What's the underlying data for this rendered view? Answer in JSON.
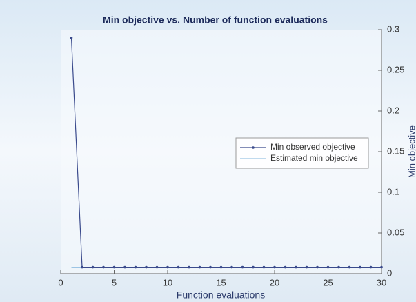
{
  "chart_data": {
    "type": "line",
    "title": "Min objective vs. Number of function evaluations",
    "xlabel": "Function evaluations",
    "ylabel": "Min objective",
    "x": [
      1,
      2,
      3,
      4,
      5,
      6,
      7,
      8,
      9,
      10,
      11,
      12,
      13,
      14,
      15,
      16,
      17,
      18,
      19,
      20,
      21,
      22,
      23,
      24,
      25,
      26,
      27,
      28,
      29,
      30
    ],
    "series": [
      {
        "name": "Min observed objective",
        "color": "#3a4a8c",
        "marker": true,
        "values": [
          0.29,
          0.008,
          0.008,
          0.008,
          0.008,
          0.008,
          0.008,
          0.008,
          0.008,
          0.008,
          0.008,
          0.008,
          0.008,
          0.008,
          0.008,
          0.008,
          0.008,
          0.008,
          0.008,
          0.008,
          0.008,
          0.008,
          0.008,
          0.008,
          0.008,
          0.008,
          0.008,
          0.008,
          0.008,
          0.008
        ]
      },
      {
        "name": "Estimated min objective",
        "color": "#9cc4e4",
        "marker": false,
        "values": [
          0.008,
          0.008,
          0.008,
          0.008,
          0.008,
          0.008,
          0.008,
          0.008,
          0.008,
          0.008,
          0.008,
          0.008,
          0.008,
          0.008,
          0.008,
          0.008,
          0.008,
          0.008,
          0.008,
          0.008,
          0.008,
          0.008,
          0.008,
          0.008,
          0.008,
          0.008,
          0.008,
          0.008,
          0.008,
          0.008
        ]
      }
    ],
    "xlim": [
      0,
      30
    ],
    "xticks": [
      0,
      5,
      10,
      15,
      20,
      25,
      30
    ],
    "ylim": [
      0,
      0.3
    ],
    "yticks": [
      0,
      0.05,
      0.1,
      0.15,
      0.2,
      0.25,
      0.3
    ],
    "y_axis_side": "right",
    "legend_position": "right"
  }
}
